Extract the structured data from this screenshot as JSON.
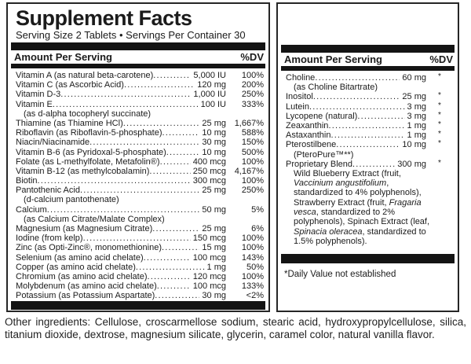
{
  "header": {
    "title": "Supplement Facts",
    "serving_line": "Serving Size 2 Tablets • Servings Per Container 30"
  },
  "columns": {
    "amount_header": "Amount Per Serving",
    "dv_header": "%DV"
  },
  "left_rows": [
    {
      "name": "Vitamin A (as natural beta-carotene)",
      "amount": "5,000 IU",
      "dv": "100%"
    },
    {
      "name": "Vitamin C (as Ascorbic Acid)",
      "amount": "120 mg",
      "dv": "200%"
    },
    {
      "name": "Vitamin D-3",
      "amount": "1,000 IU",
      "dv": "250%"
    },
    {
      "name": "Vitamin E",
      "amount": "100 IU",
      "dv": "333%"
    },
    {
      "sub": "(as d-alpha tocopheryl succinate)"
    },
    {
      "name": "Thiamine (as Thiamine HCl)",
      "amount": "25 mg",
      "dv": "1,667%"
    },
    {
      "name": "Riboflavin (as Riboflavin-5-phosphate)",
      "amount": "10 mg",
      "dv": "588%"
    },
    {
      "name": "Niacin/Niacinamide",
      "amount": "30 mg",
      "dv": "150%"
    },
    {
      "name": "Vitamin B-6 (as Pyridoxal-5-phosphate)",
      "amount": "10 mg",
      "dv": "500%"
    },
    {
      "name": "Folate (as L-methylfolate, Metafolin®)",
      "amount": "400 mcg",
      "dv": "100%"
    },
    {
      "name": "Vitamin B-12 (as methylcobalamin)",
      "amount": "250 mcg",
      "dv": "4,167%"
    },
    {
      "name": "Biotin",
      "amount": "300 mcg",
      "dv": "100%"
    },
    {
      "name": "Pantothenic Acid",
      "amount": "25 mg",
      "dv": "250%"
    },
    {
      "sub": "(d-calcium pantothenate)"
    },
    {
      "name": "Calcium",
      "amount": "50 mg",
      "dv": "5%"
    },
    {
      "sub": "(as Calcium Citrate/Malate Complex)"
    },
    {
      "name": "Magnesium (as Magnesium Citrate)",
      "amount": "25 mg",
      "dv": "6%"
    },
    {
      "name": "Iodine (from kelp)",
      "amount": "150 mcg",
      "dv": "100%"
    },
    {
      "name": "Zinc (as Opti-Zinc®, monomethionine)",
      "amount": "15 mg",
      "dv": "100%"
    },
    {
      "name": "Selenium (as amino acid chelate)",
      "amount": "100 mcg",
      "dv": "143%"
    },
    {
      "name": "Copper (as amino acid chelate)",
      "amount": "1 mg",
      "dv": "50%"
    },
    {
      "name": "Chromium (as amino acid chelate)",
      "amount": "120 mcg",
      "dv": "100%"
    },
    {
      "name": "Molybdenum (as amino acid chelate)",
      "amount": "100 mcg",
      "dv": "133%"
    },
    {
      "name": "Potassium (as Potassium Aspartate)",
      "amount": "30 mg",
      "dv": "<2%"
    }
  ],
  "right_rows": [
    {
      "name": "Choline",
      "amount": "60 mg",
      "dv": "*"
    },
    {
      "sub": "(as Choline Bitartrate)"
    },
    {
      "name": "Inositol",
      "amount": "25 mg",
      "dv": "*"
    },
    {
      "name": "Lutein",
      "amount": "3 mg",
      "dv": "*"
    },
    {
      "name": "Lycopene (natural)",
      "amount": "3 mg",
      "dv": "*"
    },
    {
      "name": "Zeaxanthin",
      "amount": "1 mg",
      "dv": "*"
    },
    {
      "name": "Astaxanthin",
      "amount": "1 mg",
      "dv": "*"
    },
    {
      "name": "Pterostilbene",
      "amount": "10 mg",
      "dv": "*"
    },
    {
      "sub": "(PteroPure™**)"
    },
    {
      "name": "Proprietary Blend",
      "amount": "300 mg",
      "dv": "*"
    }
  ],
  "blend_description": {
    "segments": [
      {
        "text": "Wild Blueberry Extract (fruit, ",
        "italic": false
      },
      {
        "text": "Vaccinium angustifolium",
        "italic": true
      },
      {
        "text": ", standardized to 4% polyphenols), Strawberry Extract (fruit, ",
        "italic": false
      },
      {
        "text": "Fragaria vesca",
        "italic": true
      },
      {
        "text": ", standardized to 2% polyphenols), Spinach Extract (leaf, ",
        "italic": false
      },
      {
        "text": "Spinacia oleracea",
        "italic": true
      },
      {
        "text": ", standardized to 1.5% polyphenols).",
        "italic": false
      }
    ]
  },
  "footnote": "*Daily Value not established",
  "other_ingredients": "Other ingredients: Cellulose, croscarmellose sodium, stearic acid, hydroxypropylcellulose, silica, titanium dioxide, dextrose, magnesium silicate, glycerin, caramel color, natural vanilla flavor.",
  "colors": {
    "text": "#1b1b1b",
    "bar": "#141414",
    "border": "#262626",
    "background": "#ffffff"
  }
}
